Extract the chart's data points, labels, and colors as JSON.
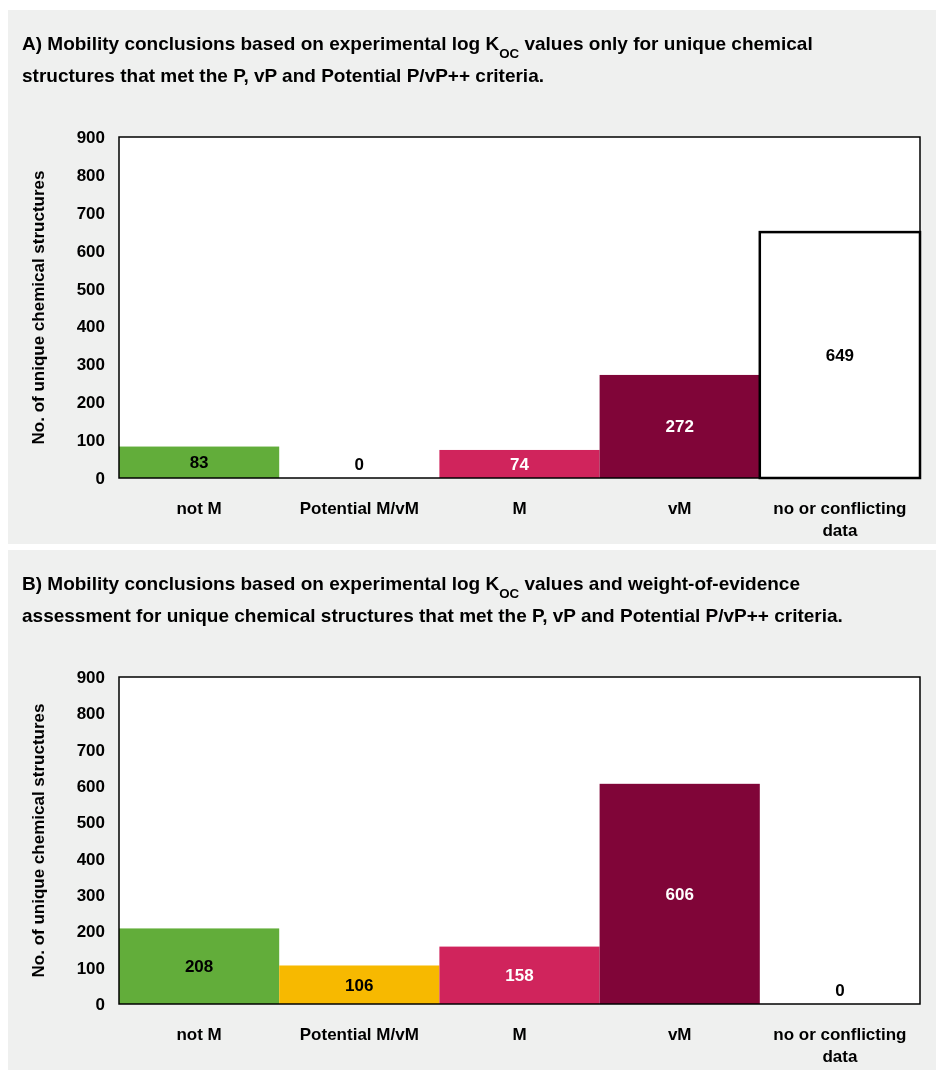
{
  "chart_data": [
    {
      "type": "bar",
      "title": "A) Mobility conclusions based on experimental log K$_{OC}$ values only for unique chemical structures that met the P, vP and Potential P/vP++ criteria.",
      "ylabel": "No. of unique chemical structures",
      "categories": [
        "not M",
        "Potential M/vM",
        "M",
        "vM",
        "no or conflicting data"
      ],
      "values": [
        83,
        0,
        74,
        272,
        649
      ],
      "colors": [
        "#62ad3a",
        "#f7b900",
        "#d0245c",
        "#800538",
        "#ffffff"
      ],
      "ylim": [
        0,
        900
      ],
      "yticks": [
        0,
        100,
        200,
        300,
        400,
        500,
        600,
        700,
        800,
        900
      ],
      "data_labels": true,
      "grid": false
    },
    {
      "type": "bar",
      "title": "B) Mobility conclusions based on experimental log K$_{OC}$ values and weight-of-evidence assessment for unique chemical structures that met the P, vP and Potential P/vP++ criteria.",
      "ylabel": "No. of unique chemical structures",
      "categories": [
        "not M",
        "Potential M/vM",
        "M",
        "vM",
        "no or conflicting data"
      ],
      "values": [
        208,
        106,
        158,
        606,
        0
      ],
      "colors": [
        "#62ad3a",
        "#f7b900",
        "#d0245c",
        "#800538",
        "#ffffff"
      ],
      "ylim": [
        0,
        900
      ],
      "yticks": [
        0,
        100,
        200,
        300,
        400,
        500,
        600,
        700,
        800,
        900
      ],
      "data_labels": true,
      "grid": false
    }
  ]
}
